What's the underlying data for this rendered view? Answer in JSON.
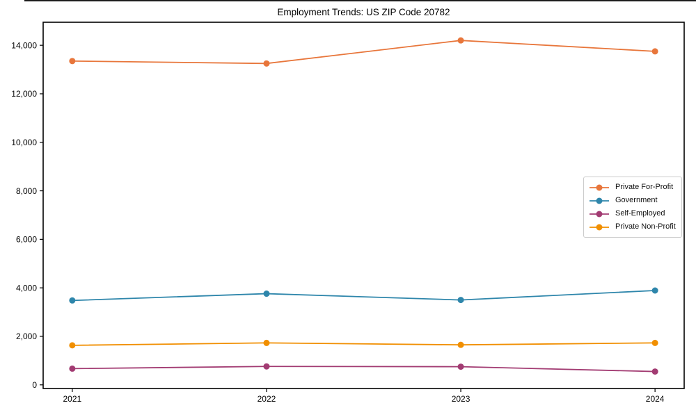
{
  "window": {
    "top_edge_color": "#1c1c1c"
  },
  "chart_data": {
    "type": "line",
    "title": "Employment Trends: US ZIP Code 20782",
    "xlabel": "",
    "ylabel": "",
    "categories": [
      "2021",
      "2022",
      "2023",
      "2024"
    ],
    "series": [
      {
        "name": "Private For-Profit",
        "color": "#E8763B",
        "values": [
          13350,
          13250,
          14200,
          13750
        ]
      },
      {
        "name": "Government",
        "color": "#2E86AB",
        "values": [
          3480,
          3760,
          3500,
          3890
        ]
      },
      {
        "name": "Self-Employed",
        "color": "#A23B72",
        "values": [
          670,
          760,
          750,
          550
        ]
      },
      {
        "name": "Private Non-Profit",
        "color": "#F18F01",
        "values": [
          1630,
          1730,
          1650,
          1730
        ]
      }
    ],
    "yticks": [
      0,
      2000,
      4000,
      6000,
      8000,
      10000,
      12000,
      14000
    ],
    "ylim": [
      -150,
      14950
    ],
    "x_margin_fraction": 0.15,
    "grid": false,
    "legend_position": "center-right",
    "axis_color": "#000000",
    "tick_label_color": "#000000",
    "marker_style": "circle",
    "line_width": 1.8,
    "marker_radius": 4.5
  }
}
